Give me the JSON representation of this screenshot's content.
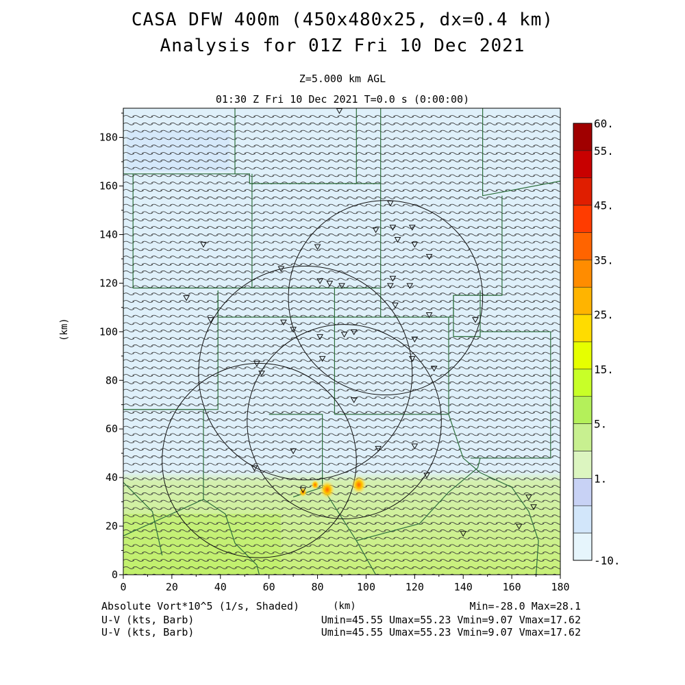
{
  "title": {
    "line1": "CASA DFW 400m (450x480x25, dx=0.4 km)",
    "line2": "Analysis for 01Z Fri 10 Dec 2021",
    "level": "Z=5.000 km AGL",
    "time": "01:30 Z Fri 10 Dec 2021    T=0.0 s (0:00:00)"
  },
  "axes": {
    "xlabel": "(km)",
    "ylabel": "(km)",
    "xlim": [
      0,
      180
    ],
    "ylim": [
      0,
      192
    ],
    "xticks": [
      "0",
      "20",
      "40",
      "60",
      "80",
      "100",
      "120",
      "140",
      "160",
      "180"
    ],
    "yticks": [
      "0",
      "20",
      "40",
      "60",
      "80",
      "100",
      "120",
      "140",
      "160",
      "180"
    ]
  },
  "colorbar": {
    "labels": [
      "60.",
      "55.",
      "45.",
      "35.",
      "25.",
      "15.",
      "5.",
      "1.",
      "-10."
    ],
    "colors": [
      "#a00000",
      "#c80000",
      "#e01e00",
      "#ff3c00",
      "#ff6400",
      "#ff8c00",
      "#ffb400",
      "#ffdc00",
      "#e6ff00",
      "#c8ff28",
      "#b4f05a",
      "#c8f090",
      "#dcf5c0",
      "#c8d2f5",
      "#d2e6fa",
      "#e6f5fc"
    ]
  },
  "footer": {
    "field1": "Absolute Vort*10^5 (1/s, Shaded)",
    "field2": "U-V (kts, Barb)",
    "field3": "U-V (kts, Barb)",
    "minmax": "Min=-28.0 Max=28.1",
    "stats1": "Umin=45.55 Umax=55.23 Vmin=9.07 Vmax=17.62",
    "stats2": "Umin=45.55 Umax=55.23 Vmin=9.07 Vmax=17.62"
  },
  "map_data": {
    "radar_rings": [
      {
        "cx": 56,
        "cy": 47,
        "r": 40
      },
      {
        "cx": 75,
        "cy": 83,
        "r": 44
      },
      {
        "cx": 91,
        "cy": 63,
        "r": 40
      },
      {
        "cx": 108,
        "cy": 114,
        "r": 40
      }
    ],
    "stations": [
      [
        89,
        191
      ],
      [
        110,
        153
      ],
      [
        119,
        143
      ],
      [
        104,
        142
      ],
      [
        111,
        143
      ],
      [
        113,
        138
      ],
      [
        120,
        136
      ],
      [
        126,
        131
      ],
      [
        80,
        135
      ],
      [
        33,
        136
      ],
      [
        65,
        126
      ],
      [
        81,
        121
      ],
      [
        85,
        120
      ],
      [
        90,
        119
      ],
      [
        111,
        122
      ],
      [
        110,
        119
      ],
      [
        118,
        119
      ],
      [
        26,
        114
      ],
      [
        112,
        111
      ],
      [
        126,
        107
      ],
      [
        36,
        105
      ],
      [
        66,
        104
      ],
      [
        70,
        101
      ],
      [
        145,
        105
      ],
      [
        81,
        98
      ],
      [
        91,
        99
      ],
      [
        95,
        100
      ],
      [
        120,
        97
      ],
      [
        119,
        89
      ],
      [
        82,
        89
      ],
      [
        128,
        85
      ],
      [
        55,
        87
      ],
      [
        57,
        83
      ],
      [
        95,
        72
      ],
      [
        70,
        51
      ],
      [
        105,
        52
      ],
      [
        120,
        53
      ],
      [
        54,
        44
      ],
      [
        125,
        41
      ],
      [
        74,
        35
      ],
      [
        167,
        32
      ],
      [
        169,
        28
      ],
      [
        163,
        20
      ],
      [
        140,
        17
      ]
    ],
    "county_lines": [
      [
        [
          0,
          193
        ],
        [
          0,
          165
        ],
        [
          52,
          165
        ],
        [
          52,
          161
        ],
        [
          106,
          161
        ],
        [
          106,
          193
        ]
      ],
      [
        [
          46,
          193
        ],
        [
          46,
          165
        ]
      ],
      [
        [
          96,
          193
        ],
        [
          96,
          161
        ]
      ],
      [
        [
          148,
          193
        ],
        [
          148,
          156
        ],
        [
          180,
          162
        ]
      ],
      [
        [
          4,
          165
        ],
        [
          4,
          118
        ],
        [
          106,
          118
        ],
        [
          106,
          161
        ]
      ],
      [
        [
          53,
          165
        ],
        [
          53,
          118
        ]
      ],
      [
        [
          0,
          117
        ],
        [
          0,
          68
        ],
        [
          39,
          68
        ],
        [
          39,
          115
        ]
      ],
      [
        [
          39,
          117
        ],
        [
          39,
          106
        ],
        [
          136,
          106
        ],
        [
          136,
          115
        ],
        [
          156,
          115
        ],
        [
          156,
          156
        ]
      ],
      [
        [
          106,
          118
        ],
        [
          106,
          106
        ]
      ],
      [
        [
          136,
          115
        ],
        [
          136,
          98
        ],
        [
          147,
          98
        ],
        [
          147,
          117
        ]
      ],
      [
        [
          147,
          100
        ],
        [
          176,
          100
        ],
        [
          176,
          48
        ],
        [
          143,
          48
        ]
      ],
      [
        [
          87,
          118
        ],
        [
          87,
          66
        ]
      ],
      [
        [
          87,
          66
        ],
        [
          134,
          66
        ],
        [
          134,
          106
        ]
      ],
      [
        [
          0,
          68
        ],
        [
          33,
          68
        ],
        [
          33,
          31
        ],
        [
          0,
          16
        ]
      ],
      [
        [
          33,
          31
        ],
        [
          42,
          25
        ],
        [
          46,
          13
        ],
        [
          55,
          4
        ],
        [
          56,
          0
        ]
      ],
      [
        [
          60,
          66
        ],
        [
          82,
          66
        ],
        [
          82,
          36
        ],
        [
          70,
          32
        ]
      ],
      [
        [
          82,
          36
        ],
        [
          96,
          14
        ],
        [
          122,
          21
        ],
        [
          134,
          34
        ],
        [
          146,
          44
        ],
        [
          147,
          48
        ]
      ],
      [
        [
          134,
          66
        ],
        [
          140,
          48
        ],
        [
          147,
          42
        ],
        [
          160,
          36
        ],
        [
          167,
          26
        ],
        [
          171,
          14
        ],
        [
          170,
          0
        ]
      ],
      [
        [
          0,
          38
        ],
        [
          12,
          26
        ],
        [
          16,
          8
        ]
      ],
      [
        [
          96,
          14
        ],
        [
          104,
          0
        ]
      ]
    ],
    "hot_spots": [
      [
        84,
        35
      ],
      [
        97,
        37
      ],
      [
        79,
        37
      ],
      [
        74,
        34
      ]
    ]
  }
}
